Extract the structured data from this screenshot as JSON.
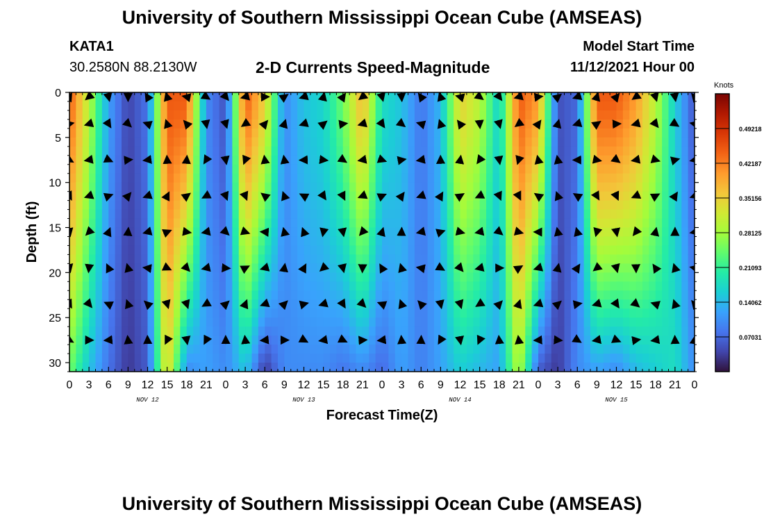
{
  "header": {
    "title": "University of Southern Mississippi Ocean Cube (AMSEAS)",
    "station_id": "KATA1",
    "station_coords": "30.2580N  88.2130W",
    "subtitle": "2-D Currents Speed-Magnitude",
    "model_start_label": "Model Start Time",
    "model_start_time": "11/12/2021 Hour 00"
  },
  "footer": {
    "title": "University of Southern Mississippi Ocean Cube (AMSEAS)"
  },
  "colors": {
    "scale": [
      "#30123b",
      "#4145ab",
      "#4675ed",
      "#39a2fc",
      "#1bcfd4",
      "#24eca6",
      "#61fc6c",
      "#a4fc3b",
      "#d1e834",
      "#f3c63a",
      "#fe9b2d",
      "#f36315",
      "#d93806",
      "#b11901",
      "#7a0403"
    ],
    "arrow": "#000000"
  },
  "chart_data": {
    "type": "heatmap",
    "title": "2-D Currents Speed-Magnitude",
    "xlabel": "Forecast Time(Z)",
    "ylabel": "Depth (ft)",
    "x_range": [
      0,
      96
    ],
    "ylim": [
      0,
      31
    ],
    "y_inverted": true,
    "x_tick_values": [
      0,
      3,
      6,
      9,
      12,
      15,
      18,
      21,
      24,
      27,
      30,
      33,
      36,
      39,
      42,
      45,
      48,
      51,
      54,
      57,
      60,
      63,
      66,
      69,
      72,
      75,
      78,
      81,
      84,
      87,
      90,
      93,
      96
    ],
    "x_tick_labels": [
      "0",
      "3",
      "6",
      "9",
      "12",
      "15",
      "18",
      "21",
      "0",
      "3",
      "6",
      "9",
      "12",
      "15",
      "18",
      "21",
      "0",
      "3",
      "6",
      "9",
      "12",
      "15",
      "18",
      "21",
      "0",
      "3",
      "6",
      "9",
      "12",
      "15",
      "18",
      "21",
      "0"
    ],
    "date_labels": [
      {
        "x": 12,
        "label": "NOV 12"
      },
      {
        "x": 36,
        "label": "NOV 13"
      },
      {
        "x": 60,
        "label": "NOV 14"
      },
      {
        "x": 84,
        "label": "NOV 15"
      }
    ],
    "y_tick_values": [
      0,
      5,
      10,
      15,
      20,
      25,
      30
    ],
    "y_tick_labels": [
      "0",
      "5",
      "10",
      "15",
      "20",
      "25",
      "30"
    ],
    "colorbar": {
      "title": "Knots",
      "range": [
        0,
        0.5625
      ],
      "tick_values": [
        0.07031,
        0.14062,
        0.21093,
        0.28125,
        0.35156,
        0.42187,
        0.49218
      ],
      "tick_labels": [
        "0.07031",
        "0.14062",
        "0.21093",
        "0.28125",
        "0.35156",
        "0.42187",
        "0.49218"
      ]
    },
    "arrow_times": [
      0,
      3,
      6,
      9,
      12,
      15,
      18,
      21,
      24,
      27,
      30,
      33,
      36,
      39,
      42,
      45,
      48,
      51,
      54,
      57,
      60,
      63,
      66,
      69,
      72,
      75,
      78,
      81,
      84,
      87,
      90,
      93,
      96
    ],
    "arrow_depths": [
      0.5,
      3.5,
      7.5,
      11.5,
      15.5,
      19.5,
      23.5,
      27.5
    ],
    "surface_speed_profile": [
      0.45,
      0.3,
      0.12,
      0.04,
      0.08,
      0.45,
      0.45,
      0.1,
      0.05,
      0.45,
      0.35,
      0.1,
      0.15,
      0.17,
      0.25,
      0.38,
      0.18,
      0.15,
      0.08,
      0.14,
      0.35,
      0.3,
      0.16,
      0.45,
      0.4,
      0.05,
      0.07,
      0.45,
      0.45,
      0.4,
      0.3,
      0.16,
      0.05
    ],
    "bottom_speed_profile": [
      0.25,
      0.15,
      0.08,
      0.03,
      0.06,
      0.35,
      0.1,
      0.12,
      0.1,
      0.15,
      0.03,
      0.1,
      0.1,
      0.1,
      0.08,
      0.1,
      0.07,
      0.12,
      0.09,
      0.12,
      0.16,
      0.14,
      0.12,
      0.3,
      0.06,
      0.03,
      0.1,
      0.12,
      0.1,
      0.14,
      0.16,
      0.18,
      0.1
    ]
  }
}
